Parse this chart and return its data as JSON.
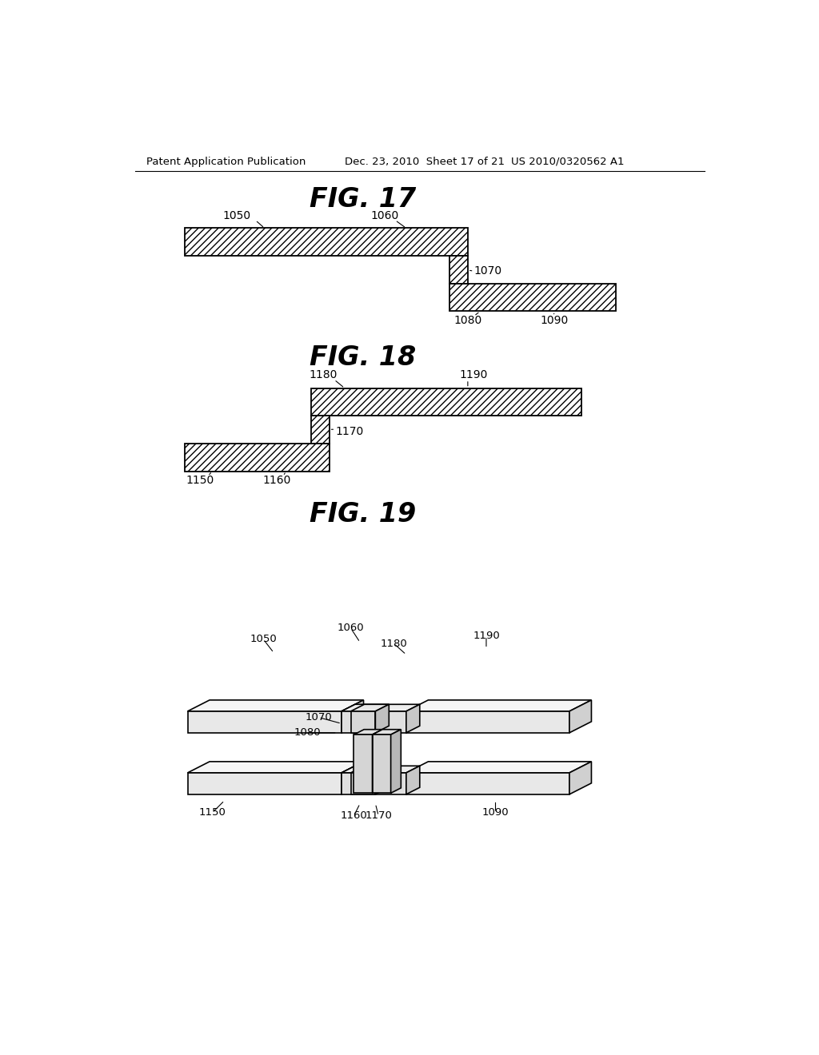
{
  "header_left": "Patent Application Publication",
  "header_mid": "Dec. 23, 2010  Sheet 17 of 21",
  "header_right": "US 2010/0320562 A1",
  "fig17_title": "FIG. 17",
  "fig18_title": "FIG. 18",
  "fig19_title": "FIG. 19",
  "bg_color": "#ffffff",
  "line_color": "#000000"
}
